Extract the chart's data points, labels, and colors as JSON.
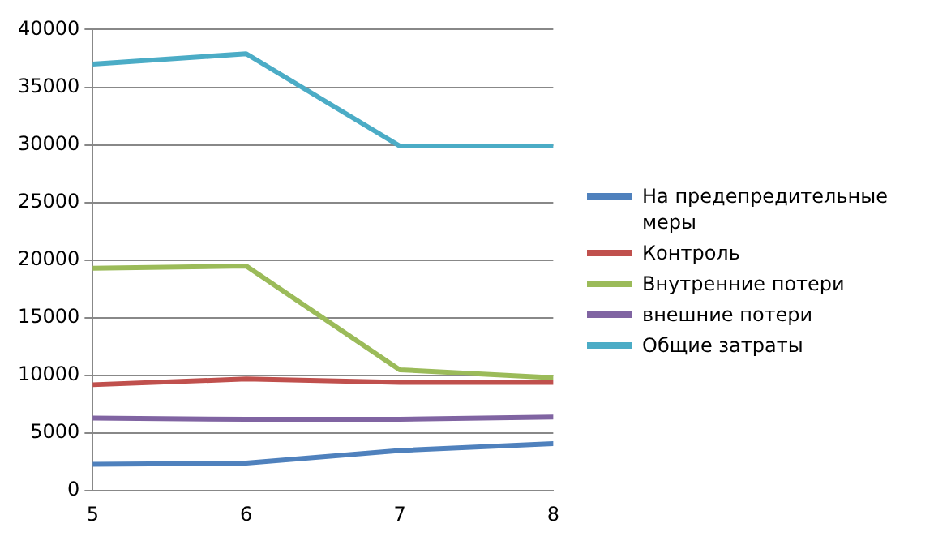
{
  "chart_data": {
    "type": "line",
    "x": [
      5,
      6,
      7,
      8
    ],
    "xlim": [
      5,
      8
    ],
    "xticks": [
      5,
      6,
      7,
      8
    ],
    "ylim": [
      0,
      40000
    ],
    "yticks": [
      0,
      5000,
      10000,
      15000,
      20000,
      25000,
      30000,
      35000,
      40000
    ],
    "grid": "y",
    "legend": "right",
    "marker": "none",
    "line_style": "solid",
    "series": [
      {
        "name": "На предепредительные меры",
        "color": "#4f81bd",
        "values": [
          2300,
          2400,
          3500,
          4100
        ]
      },
      {
        "name": "Контроль",
        "color": "#c0504d",
        "values": [
          9200,
          9700,
          9400,
          9400
        ]
      },
      {
        "name": "Внутренние потери",
        "color": "#9bbb59",
        "values": [
          19300,
          19500,
          10500,
          9800
        ]
      },
      {
        "name": "внешние потери",
        "color": "#8064a2",
        "values": [
          6300,
          6200,
          6200,
          6400
        ]
      },
      {
        "name": "Общие затраты",
        "color": "#4bacc6",
        "values": [
          37000,
          37900,
          29900,
          29900
        ]
      }
    ]
  }
}
